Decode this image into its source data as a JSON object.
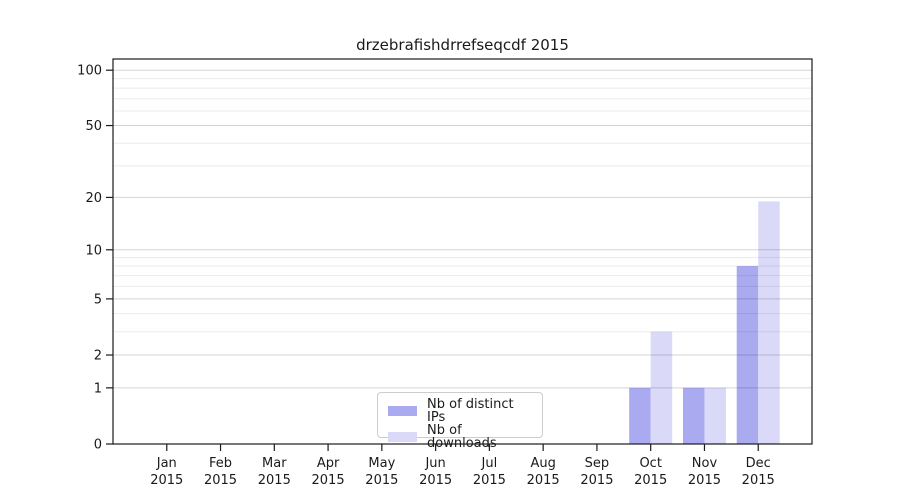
{
  "chart_data": {
    "type": "bar",
    "title": "drzebrafishdrrefseqcdf 2015",
    "xlabel": "",
    "ylabel": "",
    "y_scale": "log1p",
    "ylim": [
      0,
      115
    ],
    "grid": true,
    "y_major_ticks": [
      0,
      1,
      2,
      5,
      10,
      20,
      50,
      100
    ],
    "y_minor_gridlines": [
      3,
      4,
      6,
      7,
      8,
      9,
      30,
      40,
      60,
      70,
      80,
      90
    ],
    "categories": [
      {
        "label": "Jan",
        "sublabel": "2015"
      },
      {
        "label": "Feb",
        "sublabel": "2015"
      },
      {
        "label": "Mar",
        "sublabel": "2015"
      },
      {
        "label": "Apr",
        "sublabel": "2015"
      },
      {
        "label": "May",
        "sublabel": "2015"
      },
      {
        "label": "Jun",
        "sublabel": "2015"
      },
      {
        "label": "Jul",
        "sublabel": "2015"
      },
      {
        "label": "Aug",
        "sublabel": "2015"
      },
      {
        "label": "Sep",
        "sublabel": "2015"
      },
      {
        "label": "Oct",
        "sublabel": "2015"
      },
      {
        "label": "Nov",
        "sublabel": "2015"
      },
      {
        "label": "Dec",
        "sublabel": "2015"
      }
    ],
    "series": [
      {
        "name": "Nb of distinct IPs",
        "color": "#aaaaf0",
        "values": [
          0,
          0,
          0,
          0,
          0,
          0,
          0,
          0,
          0,
          1,
          1,
          8
        ]
      },
      {
        "name": "Nb of downloads",
        "color": "#dadaf8",
        "values": [
          0,
          0,
          0,
          0,
          0,
          0,
          0,
          0,
          0,
          3,
          1,
          19
        ]
      }
    ],
    "legend_position": "bottom-center",
    "colors": {
      "spine": "#1a1a1a",
      "major_grid": "rgba(0,0,0,0.17)",
      "minor_grid": "rgba(0,0,0,0.08)",
      "background": "#ffffff"
    }
  }
}
